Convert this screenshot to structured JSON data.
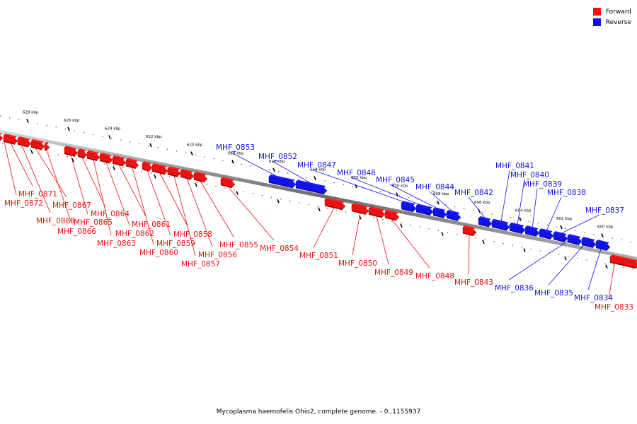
{
  "caption": "Mycoplasma haemofelis Ohio2, complete genome. - 0..1155937",
  "legend": [
    {
      "label": "Forward",
      "color": "#ee1111"
    },
    {
      "label": "Reverse",
      "color": "#1111ee"
    }
  ],
  "colors": {
    "forward": "#ee1111",
    "reverse": "#1111ee",
    "backbone": "#808080"
  },
  "ticks": [
    {
      "label": "628 kbp",
      "pos": 628
    },
    {
      "label": "626 kbp",
      "pos": 626
    },
    {
      "label": "624 kbp",
      "pos": 624
    },
    {
      "label": "622 kbp",
      "pos": 622
    },
    {
      "label": "620 kbp",
      "pos": 620
    },
    {
      "label": "618 kbp",
      "pos": 618
    },
    {
      "label": "616 kbp",
      "pos": 616
    },
    {
      "label": "614 kbp",
      "pos": 614
    },
    {
      "label": "612 kbp",
      "pos": 612
    },
    {
      "label": "610 kbp",
      "pos": 610
    },
    {
      "label": "608 kbp",
      "pos": 608
    },
    {
      "label": "606 kbp",
      "pos": 606
    },
    {
      "label": "604 kbp",
      "pos": 604
    },
    {
      "label": "602 kbp",
      "pos": 602
    },
    {
      "label": "600 kbp",
      "pos": 600
    }
  ],
  "genes": [
    {
      "name": "MHF_0872",
      "strand": "forward"
    },
    {
      "name": "MHF_0871",
      "strand": "forward"
    },
    {
      "name": "MHF_0868",
      "strand": "forward"
    },
    {
      "name": "MHF_0867",
      "strand": "forward"
    },
    {
      "name": "MHF_0866",
      "strand": "forward"
    },
    {
      "name": "MHF_0865",
      "strand": "forward"
    },
    {
      "name": "MHF_0864",
      "strand": "forward"
    },
    {
      "name": "MHF_0863",
      "strand": "forward"
    },
    {
      "name": "MHF_0862",
      "strand": "forward"
    },
    {
      "name": "MHF_0861",
      "strand": "forward"
    },
    {
      "name": "MHF_0860",
      "strand": "forward"
    },
    {
      "name": "MHF_0859",
      "strand": "forward"
    },
    {
      "name": "MHF_0858",
      "strand": "forward"
    },
    {
      "name": "MHF_0857",
      "strand": "forward"
    },
    {
      "name": "MHF_0856",
      "strand": "forward"
    },
    {
      "name": "MHF_0855",
      "strand": "forward"
    },
    {
      "name": "MHF_0854",
      "strand": "forward"
    },
    {
      "name": "MHF_0853",
      "strand": "reverse"
    },
    {
      "name": "MHF_0852",
      "strand": "reverse"
    },
    {
      "name": "MHF_0851",
      "strand": "forward"
    },
    {
      "name": "MHF_0850",
      "strand": "forward"
    },
    {
      "name": "MHF_0849",
      "strand": "forward"
    },
    {
      "name": "MHF_0848",
      "strand": "forward"
    },
    {
      "name": "MHF_0847",
      "strand": "reverse"
    },
    {
      "name": "MHF_0846",
      "strand": "reverse"
    },
    {
      "name": "MHF_0845",
      "strand": "reverse"
    },
    {
      "name": "MHF_0844",
      "strand": "reverse"
    },
    {
      "name": "MHF_0843",
      "strand": "forward"
    },
    {
      "name": "MHF_0842",
      "strand": "reverse"
    },
    {
      "name": "MHF_0841",
      "strand": "reverse"
    },
    {
      "name": "MHF_0840",
      "strand": "reverse"
    },
    {
      "name": "MHF_0839",
      "strand": "reverse"
    },
    {
      "name": "MHF_0838",
      "strand": "reverse"
    },
    {
      "name": "MHF_0837",
      "strand": "reverse"
    },
    {
      "name": "MHF_0836",
      "strand": "reverse"
    },
    {
      "name": "MHF_0835",
      "strand": "reverse"
    },
    {
      "name": "MHF_0834",
      "strand": "reverse"
    },
    {
      "name": "MHF_0833",
      "strand": "forward"
    }
  ]
}
